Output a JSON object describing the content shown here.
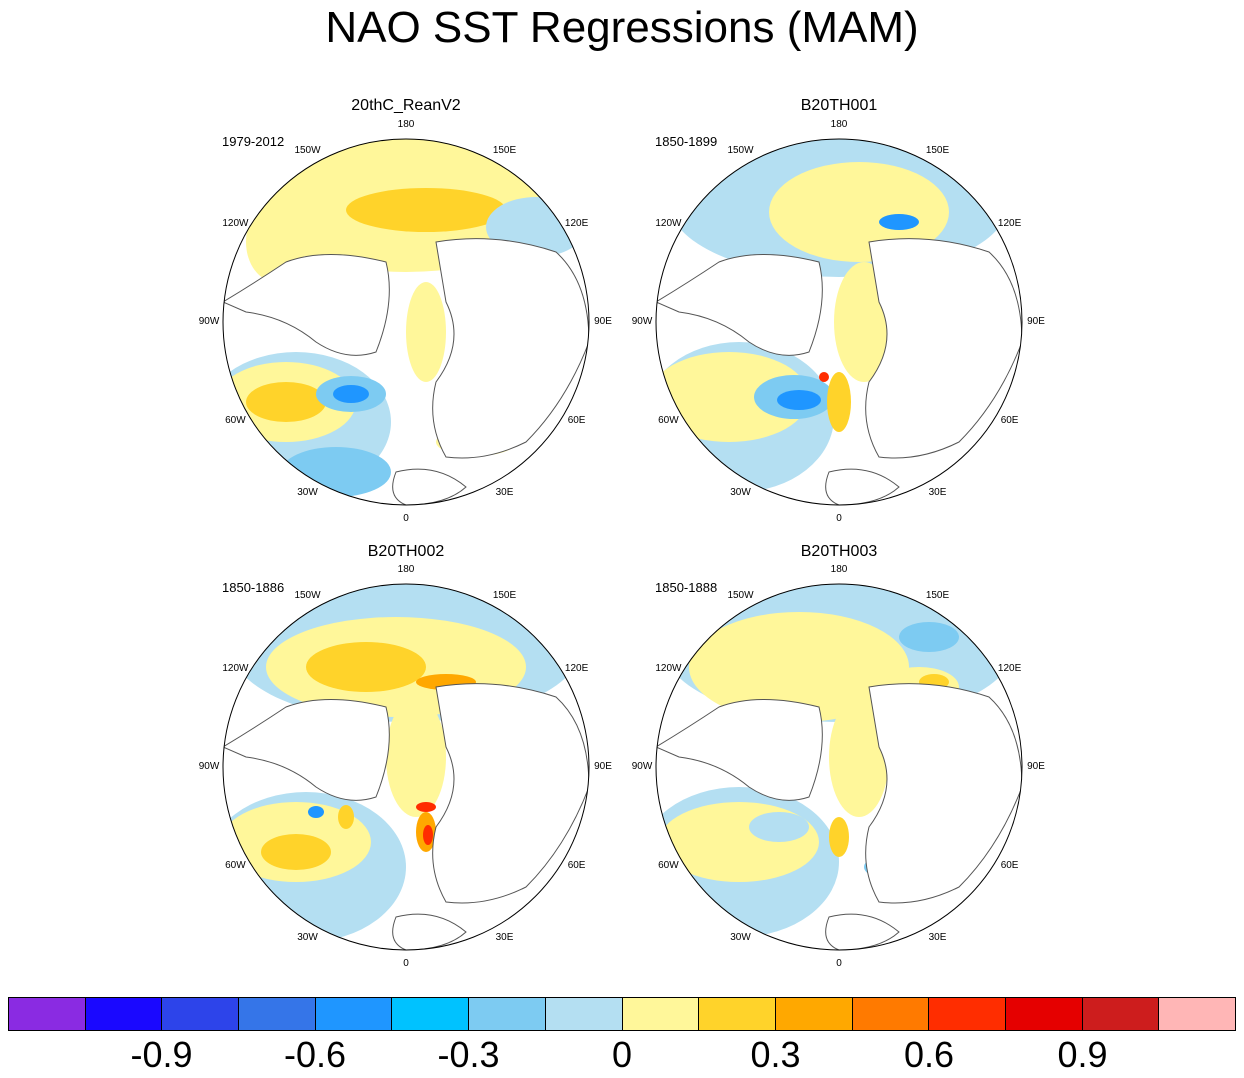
{
  "chart_data": {
    "type": "polar-stereographic filled contour maps",
    "title": "NAO SST Regressions (MAM)",
    "panels": [
      {
        "title": "20thC_ReanV2",
        "period": "1979-2012"
      },
      {
        "title": "B20TH001",
        "period": "1850-1899"
      },
      {
        "title": "B20TH002",
        "period": "1850-1886"
      },
      {
        "title": "B20TH003",
        "period": "1850-1888"
      }
    ],
    "longitude_labels": [
      "180",
      "150E",
      "120E",
      "90E",
      "60E",
      "30E",
      "0",
      "30W",
      "60W",
      "90W",
      "120W",
      "150W"
    ],
    "colorbar": {
      "colors": [
        "#8a2be2",
        "#1a08ff",
        "#2d44ea",
        "#3575e8",
        "#1f96ff",
        "#00c2ff",
        "#7dcbf2",
        "#b4dff2",
        "#fff79a",
        "#ffd32a",
        "#ffa800",
        "#ff7a00",
        "#ff2d00",
        "#e50000",
        "#cd1d1d",
        "#ffb6b6"
      ],
      "tick_labels": [
        "-0.9",
        "-0.6",
        "-0.3",
        "0",
        "0.3",
        "0.6",
        "0.9"
      ]
    }
  }
}
